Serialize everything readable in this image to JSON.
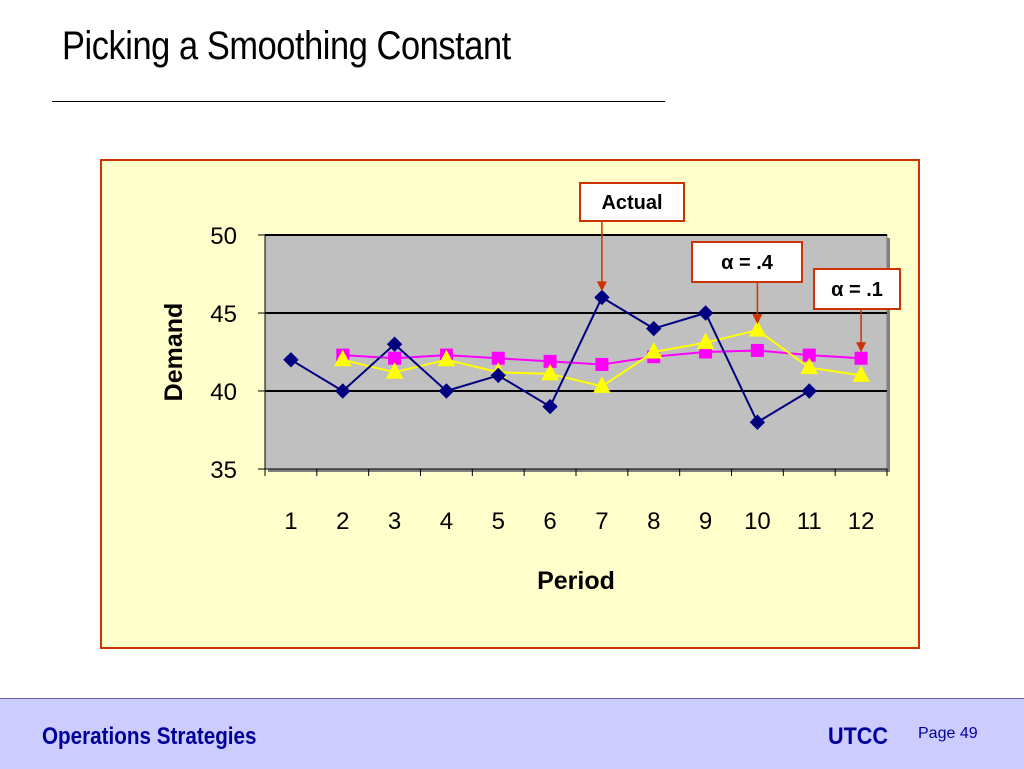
{
  "slide": {
    "title": "Picking a Smoothing Constant"
  },
  "footer": {
    "left_text": "Operations Strategies",
    "brand": "UTCC",
    "page_label": "Page 49"
  },
  "colors": {
    "frame_border": "#cc3300",
    "frame_background": "#ffffcc",
    "plot_background": "#c0c0c0",
    "actual": "#000080",
    "alpha_04": "#ffff00",
    "alpha_01": "#ff00ff",
    "callout_arrow": "#cc3300",
    "footer_background": "#ccccff",
    "footer_text": "#000099"
  },
  "chart_data": {
    "type": "line",
    "title": "",
    "xlabel": "Period",
    "ylabel": "Demand",
    "categories": [
      "1",
      "2",
      "3",
      "4",
      "5",
      "6",
      "7",
      "8",
      "9",
      "10",
      "11",
      "12"
    ],
    "ylim": [
      35,
      50
    ],
    "yticks": [
      35,
      40,
      45,
      50
    ],
    "grid": "horizontal",
    "legend": "callouts",
    "series": [
      {
        "name": "Actual",
        "marker": "diamond",
        "values": [
          42,
          40,
          43,
          40,
          41,
          39,
          46,
          44,
          45,
          38,
          40,
          null
        ]
      },
      {
        "name": "α = .4",
        "marker": "triangle",
        "values": [
          null,
          42,
          41.2,
          42,
          41.2,
          41.1,
          40.3,
          42.5,
          43.1,
          43.9,
          41.5,
          41.0
        ]
      },
      {
        "name": "α = .1",
        "marker": "square",
        "values": [
          null,
          42.3,
          42.1,
          42.3,
          42.1,
          41.9,
          41.7,
          42.2,
          42.5,
          42.6,
          42.3,
          42.1
        ]
      }
    ],
    "callouts": [
      {
        "label": "Actual",
        "series": 0,
        "point": 6
      },
      {
        "label": "α = .4",
        "series": 1,
        "point": 9
      },
      {
        "label": "α = .1",
        "series": 2,
        "point": 11
      }
    ]
  }
}
